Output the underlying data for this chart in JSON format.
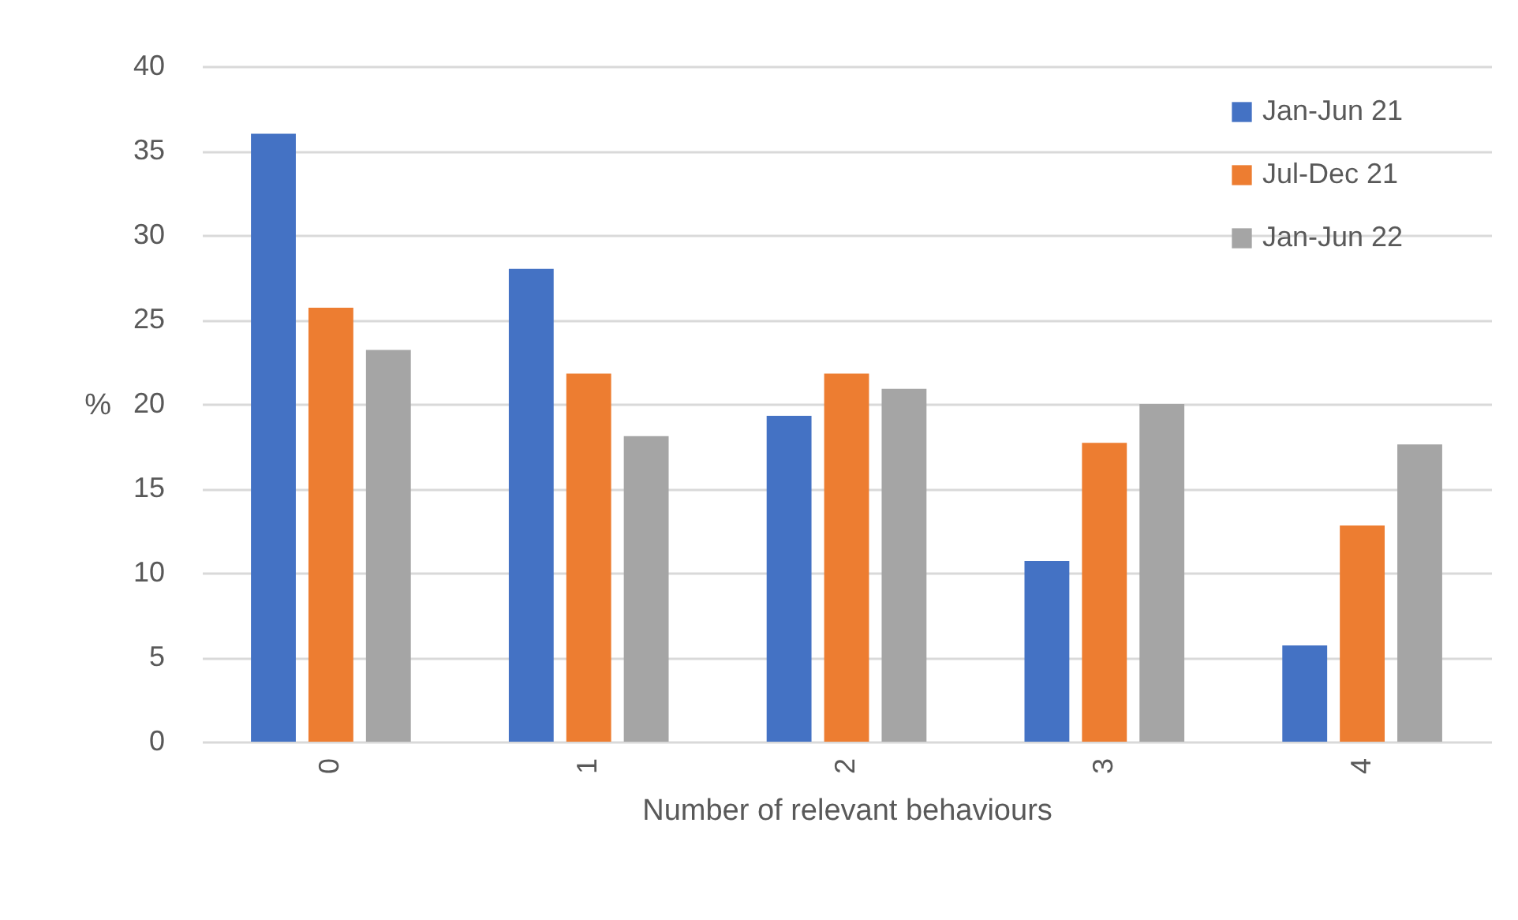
{
  "chart_data": {
    "type": "bar",
    "xlabel": "Number of relevant behaviours",
    "ylabel": "%",
    "categories": [
      "0",
      "1",
      "2",
      "3",
      "4"
    ],
    "series": [
      {
        "name": "Jan-Jun 21",
        "color": "#4472c4",
        "values": [
          36.0,
          28.0,
          19.3,
          10.7,
          5.7
        ]
      },
      {
        "name": "Jul-Dec 21",
        "color": "#ed7d31",
        "values": [
          25.7,
          21.8,
          21.8,
          17.7,
          12.8
        ]
      },
      {
        "name": "Jan-Jun 22",
        "color": "#a5a5a5",
        "values": [
          23.2,
          18.1,
          20.9,
          20.0,
          17.6
        ]
      }
    ],
    "ylim": [
      0,
      40
    ],
    "yticks": [
      0,
      5,
      10,
      15,
      20,
      25,
      30,
      35,
      40
    ],
    "grid": "y",
    "legend": "top right"
  }
}
